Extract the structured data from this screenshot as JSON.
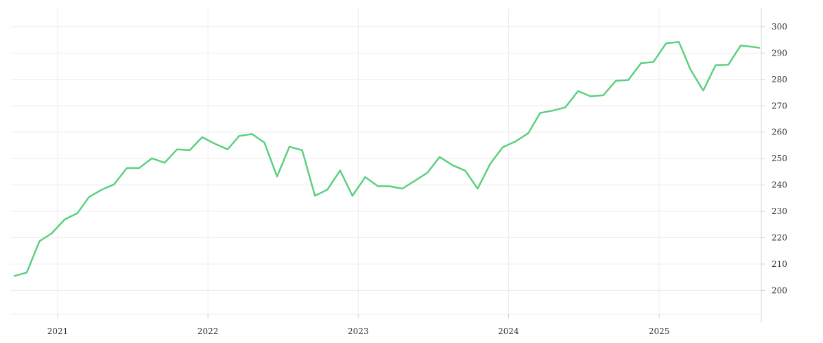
{
  "chart_data": {
    "type": "line",
    "title": "",
    "xlabel": "",
    "ylabel": "",
    "x_tick_labels": [
      "2021",
      "2022",
      "2023",
      "2024",
      "2025"
    ],
    "y_tick_labels": [
      "200",
      "210",
      "220",
      "230",
      "240",
      "250",
      "260",
      "270",
      "280",
      "290",
      "300"
    ],
    "y_ticks": [
      200,
      210,
      220,
      230,
      240,
      250,
      260,
      270,
      280,
      290,
      300
    ],
    "ylim": [
      191,
      307
    ],
    "xlim": [
      "2020-09-08",
      "2025-09-06"
    ],
    "grid": true,
    "line_color": "#5bd07f",
    "x_tick_dates": [
      "2021-01-01",
      "2022-01-01",
      "2023-01-01",
      "2024-01-01",
      "2025-01-01"
    ],
    "series": [
      {
        "x": [
          "2020-09-18",
          "2020-10-18",
          "2020-11-18",
          "2020-12-18",
          "2021-01-18",
          "2021-02-18",
          "2021-03-18",
          "2021-04-18",
          "2021-05-18",
          "2021-06-18",
          "2021-07-18",
          "2021-08-18",
          "2021-09-18",
          "2021-10-18",
          "2021-11-18",
          "2021-12-18",
          "2022-01-18",
          "2022-02-18",
          "2022-03-18",
          "2022-04-18",
          "2022-05-18",
          "2022-06-18",
          "2022-07-18",
          "2022-08-18",
          "2022-09-18",
          "2022-10-18",
          "2022-11-18",
          "2022-12-18",
          "2023-01-18",
          "2023-02-18",
          "2023-03-18",
          "2023-04-18",
          "2023-05-18",
          "2023-06-18",
          "2023-07-18",
          "2023-08-18",
          "2023-09-18",
          "2023-10-18",
          "2023-11-18",
          "2023-12-18",
          "2024-01-18",
          "2024-02-18",
          "2024-03-18",
          "2024-04-18",
          "2024-05-18",
          "2024-06-18",
          "2024-07-18",
          "2024-08-18",
          "2024-09-18",
          "2024-10-18",
          "2024-11-18",
          "2024-12-18",
          "2025-01-18",
          "2025-02-18",
          "2025-03-18",
          "2025-04-18",
          "2025-05-18",
          "2025-06-18",
          "2025-07-18",
          "2025-08-18",
          "2025-09-01"
        ],
        "y": [
          205.5,
          206.8,
          218.7,
          221.7,
          226.9,
          229.3,
          235.4,
          238.2,
          240.2,
          246.4,
          246.4,
          250.1,
          248.4,
          253.5,
          253.2,
          258.1,
          255.6,
          253.5,
          258.6,
          259.3,
          256.1,
          243.2,
          254.5,
          253.2,
          235.9,
          238.2,
          245.5,
          235.9,
          243.0,
          239.5,
          239.5,
          238.6,
          241.5,
          244.6,
          250.6,
          247.5,
          245.4,
          238.6,
          248.1,
          254.3,
          256.5,
          259.6,
          267.3,
          268.2,
          269.4,
          275.6,
          273.6,
          274.0,
          279.5,
          279.8,
          286.2,
          286.6,
          293.7,
          294.2,
          283.8,
          275.8,
          285.4,
          285.6,
          292.9,
          292.3,
          292.0
        ]
      }
    ]
  }
}
